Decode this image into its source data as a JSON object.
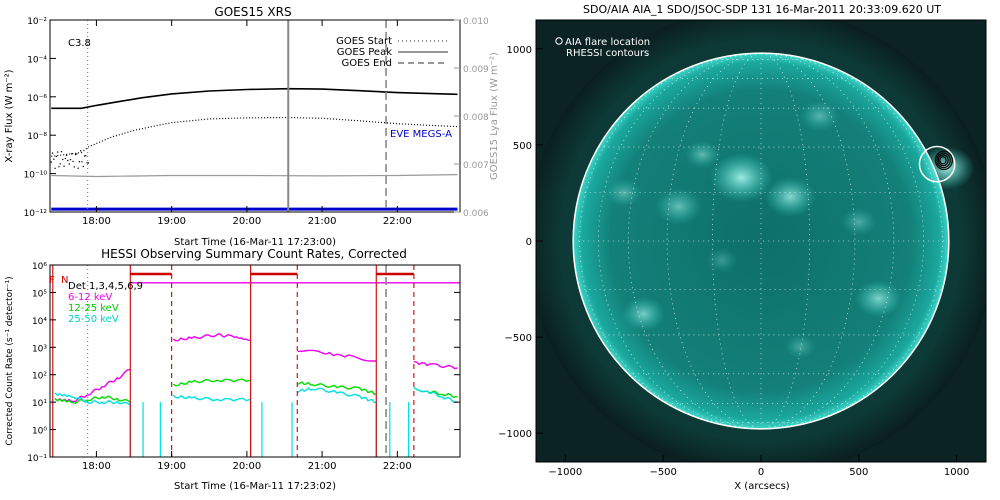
{
  "colors": {
    "goes_long": "#000000",
    "goes_short": "#000000",
    "lya": "#999999",
    "megs": "#0000cc",
    "start_line": "#888888",
    "peak_line": "#888888",
    "end_line": "#888888",
    "att": "#cc0000",
    "det_label": "#000000",
    "band_6_12": "#ee00ee",
    "band_12_25": "#00dd00",
    "band_25_50": "#00e0e0",
    "sun": "#1fb3a8",
    "sun_bright": "#6ff5e6"
  },
  "chart_data": [
    {
      "id": "goes",
      "type": "line",
      "title": "GOES15 XRS",
      "xlabel": "Start Time (16-Mar-11 17:23:00)",
      "ylabel": "X-ray Flux (W m⁻²)",
      "ylabel_right": "GOES15 Lya Flux (W m⁻²)",
      "x_range": [
        17.383,
        22.833
      ],
      "x_ticks": [
        {
          "v": 18,
          "label": "18:00"
        },
        {
          "v": 19,
          "label": "19:00"
        },
        {
          "v": 20,
          "label": "20:00"
        },
        {
          "v": 21,
          "label": "21:00"
        },
        {
          "v": 22,
          "label": "22:00"
        }
      ],
      "y_log_range": [
        -12,
        -2
      ],
      "y_ticks": [
        {
          "e": -2,
          "label": "10⁻²"
        },
        {
          "e": -4,
          "label": "10⁻⁴"
        },
        {
          "e": -6,
          "label": "10⁻⁶"
        },
        {
          "e": -8,
          "label": "10⁻⁸"
        },
        {
          "e": -10,
          "label": "10⁻¹⁰"
        },
        {
          "e": -12,
          "label": "10⁻¹²"
        }
      ],
      "y2_range": [
        0.006,
        0.01
      ],
      "y2_ticks": [
        {
          "v": 0.01,
          "label": "0.010"
        },
        {
          "v": 0.009,
          "label": "0.009"
        },
        {
          "v": 0.008,
          "label": "0.008"
        },
        {
          "v": 0.007,
          "label": "0.007"
        },
        {
          "v": 0.006,
          "label": "0.006"
        }
      ],
      "flare_class": "C3.8",
      "legend": [
        "GOES Start",
        "GOES Peak",
        "GOES End"
      ],
      "annotation": "EVE MEGS-A",
      "event_times": {
        "start": 17.883,
        "peak": 20.55,
        "end": 21.85
      },
      "series": [
        {
          "name": "GOES long (1-8 Å)",
          "x": [
            17.4,
            17.8,
            18.0,
            18.3,
            18.6,
            19.0,
            19.5,
            20.0,
            20.55,
            21.0,
            21.5,
            22.0,
            22.5,
            22.8
          ],
          "logy": [
            -6.6,
            -6.6,
            -6.45,
            -6.25,
            -6.05,
            -5.85,
            -5.7,
            -5.62,
            -5.58,
            -5.6,
            -5.68,
            -5.78,
            -5.84,
            -5.87
          ]
        },
        {
          "name": "GOES short (0.5-4 Å)",
          "x": [
            17.4,
            17.8,
            17.9,
            18.2,
            18.5,
            18.8,
            19.0,
            19.5,
            20.0,
            20.55,
            21.0,
            21.5,
            22.0,
            22.5,
            22.8
          ],
          "logy": [
            -9.1,
            -8.9,
            -8.6,
            -8.1,
            -7.75,
            -7.5,
            -7.35,
            -7.15,
            -7.1,
            -7.08,
            -7.12,
            -7.25,
            -7.4,
            -7.5,
            -7.55
          ]
        },
        {
          "name": "Lya",
          "x": [
            17.4,
            18.0,
            19.0,
            20.0,
            21.0,
            22.0,
            22.8
          ],
          "logy": [
            -10.1,
            -10.15,
            -10.1,
            -10.1,
            -10.12,
            -10.1,
            -10.05
          ]
        },
        {
          "name": "EVE MEGS-A",
          "x": [
            17.4,
            22.8
          ],
          "logy": [
            -11.85,
            -11.85
          ]
        }
      ]
    },
    {
      "id": "hessi",
      "type": "line",
      "title": "HESSI Observing Summary Count Rates, Corrected",
      "xlabel": "Start Time (16-Mar-11 17:23:02)",
      "ylabel": "Corrected Count Rate (s⁻¹ detector⁻¹)",
      "x_range": [
        17.383,
        22.833
      ],
      "x_ticks": [
        {
          "v": 18,
          "label": "18:00"
        },
        {
          "v": 19,
          "label": "19:00"
        },
        {
          "v": 20,
          "label": "20:00"
        },
        {
          "v": 21,
          "label": "21:00"
        },
        {
          "v": 22,
          "label": "22:00"
        }
      ],
      "y_log_range": [
        -1,
        6
      ],
      "y_ticks": [
        {
          "e": 6,
          "label": "10⁶"
        },
        {
          "e": 5,
          "label": "10⁵"
        },
        {
          "e": 4,
          "label": "10⁴"
        },
        {
          "e": 3,
          "label": "10³"
        },
        {
          "e": 2,
          "label": "10²"
        },
        {
          "e": 1,
          "label": "10¹"
        },
        {
          "e": 0,
          "label": "10⁰"
        },
        {
          "e": -1,
          "label": "10⁻¹"
        }
      ],
      "legend": [
        {
          "label": "Det 1,3,4,5,6,9",
          "color_key": "det_label"
        },
        {
          "label": "6-12 keV",
          "color_key": "band_6_12"
        },
        {
          "label": "12-25 keV",
          "color_key": "band_12_25"
        },
        {
          "label": "25-50 keV",
          "color_key": "band_25_50"
        }
      ],
      "corner_flags": [
        "F",
        "N"
      ],
      "gap_edges": [
        17.42,
        18.45,
        19.0,
        20.05,
        20.67,
        21.72,
        22.22
      ],
      "event_times": {
        "start": 17.883,
        "end": 21.85
      },
      "night_bars": [
        [
          18.45,
          19.0
        ],
        [
          20.05,
          20.67
        ],
        [
          21.72,
          22.22
        ]
      ],
      "series": [
        {
          "name": "6-12 keV",
          "color_key": "band_6_12",
          "segments": [
            {
              "x": [
                17.45,
                17.7,
                17.9,
                18.1,
                18.3,
                18.45
              ],
              "logy": [
                1.1,
                1.05,
                1.3,
                1.6,
                1.9,
                2.2
              ]
            },
            {
              "x": [
                19.02,
                19.3,
                19.6,
                19.8,
                20.05
              ],
              "logy": [
                3.25,
                3.35,
                3.45,
                3.4,
                3.25
              ]
            },
            {
              "x": [
                20.68,
                21.0,
                21.4,
                21.72
              ],
              "logy": [
                2.9,
                2.8,
                2.65,
                2.5
              ]
            },
            {
              "x": [
                22.22,
                22.5,
                22.8
              ],
              "logy": [
                2.45,
                2.35,
                2.25
              ]
            }
          ]
        },
        {
          "name": "12-25 keV",
          "color_key": "band_12_25",
          "segments": [
            {
              "x": [
                17.45,
                17.7,
                17.9,
                18.1,
                18.3,
                18.45
              ],
              "logy": [
                1.1,
                1.0,
                1.1,
                1.2,
                1.1,
                1.0
              ]
            },
            {
              "x": [
                19.02,
                19.3,
                19.6,
                20.05
              ],
              "logy": [
                1.6,
                1.75,
                1.8,
                1.8
              ]
            },
            {
              "x": [
                20.68,
                20.9,
                21.2,
                21.5,
                21.72
              ],
              "logy": [
                1.7,
                1.65,
                1.55,
                1.5,
                1.3
              ]
            },
            {
              "x": [
                22.22,
                22.4,
                22.6,
                22.8
              ],
              "logy": [
                1.5,
                1.4,
                1.3,
                1.2
              ]
            }
          ]
        },
        {
          "name": "25-50 keV",
          "color_key": "band_25_50",
          "segments": [
            {
              "x": [
                17.45,
                17.7,
                17.9,
                18.1,
                18.3,
                18.45
              ],
              "logy": [
                1.3,
                1.2,
                1.0,
                1.0,
                1.0,
                0.9
              ]
            },
            {
              "x": [
                19.02,
                19.3,
                19.6,
                20.05
              ],
              "logy": [
                1.2,
                1.15,
                1.1,
                1.1
              ]
            },
            {
              "x": [
                20.68,
                20.9,
                21.2,
                21.5,
                21.72
              ],
              "logy": [
                1.4,
                1.5,
                1.35,
                1.2,
                1.0
              ]
            },
            {
              "x": [
                22.22,
                22.4,
                22.6,
                22.8
              ],
              "logy": [
                1.5,
                1.4,
                1.2,
                1.0
              ]
            }
          ]
        }
      ]
    },
    {
      "id": "aia",
      "type": "image",
      "title": "SDO/AIA AIA_1 SDO/JSOC-SDP 131 16-Mar-2011 20:33:09.620 UT",
      "xlabel": "X (arcsecs)",
      "x_range": [
        -1150,
        1150
      ],
      "y_range": [
        -1150,
        1150
      ],
      "x_ticks": [
        {
          "v": -1000,
          "label": "−1000"
        },
        {
          "v": -500,
          "label": "−500"
        },
        {
          "v": 0,
          "label": "0"
        },
        {
          "v": 500,
          "label": "500"
        },
        {
          "v": 1000,
          "label": "1000"
        }
      ],
      "y_ticks": [
        {
          "v": 1000,
          "label": "1000"
        },
        {
          "v": 500,
          "label": "500"
        },
        {
          "v": 0,
          "label": "0"
        },
        {
          "v": -500,
          "label": "−500"
        },
        {
          "v": -1000,
          "label": "−1000"
        }
      ],
      "legend": [
        "AIA flare location",
        "RHESSI contours"
      ],
      "solar_radius": 960,
      "flare_xy": [
        900,
        400
      ],
      "flare_circle_r": 90,
      "contour_center": [
        930,
        420
      ],
      "contour_radii": [
        18,
        28,
        38,
        48
      ]
    }
  ]
}
